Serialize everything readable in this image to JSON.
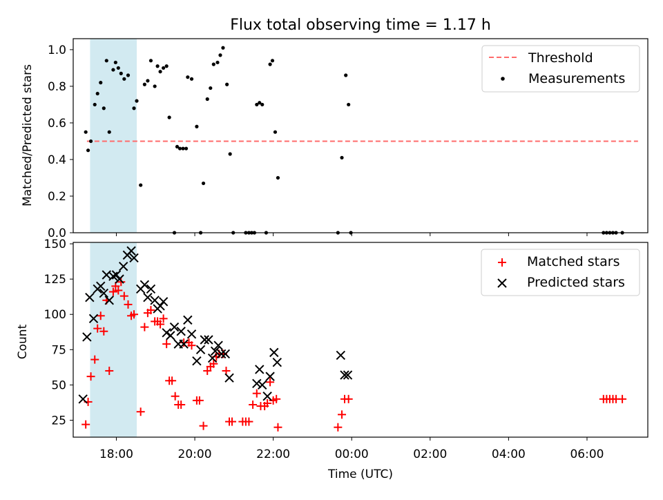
{
  "chart_data": [
    {
      "type": "scatter",
      "title": "Flux total observing time = 1.17 h",
      "ylabel": "Matched/Predicted stars",
      "xlabel": "",
      "x_unit": "hours since 00:00 UTC of first night (values > 24 are next day)",
      "xlim": [
        16.9,
        31.55
      ],
      "ylim": [
        0,
        1.06
      ],
      "yticks": [
        "0.0",
        "0.2",
        "0.4",
        "0.6",
        "0.8",
        "1.0"
      ],
      "xticks": [
        "18:00",
        "20:00",
        "22:00",
        "00:00",
        "02:00",
        "04:00",
        "06:00"
      ],
      "highlight_span": [
        17.33,
        18.52
      ],
      "highlight_color": "#add8e6",
      "legend_position": "upper right",
      "series": [
        {
          "name": "Threshold",
          "kind": "line",
          "style": "dashed",
          "color": "#ff6b6b",
          "x": [
            17.25,
            31.3
          ],
          "y": [
            0.5,
            0.5
          ]
        },
        {
          "name": "Measurements",
          "kind": "scatter",
          "color": "#000000",
          "points": [
            [
              17.22,
              0.55
            ],
            [
              17.28,
              0.45
            ],
            [
              17.35,
              0.5
            ],
            [
              17.45,
              0.7
            ],
            [
              17.52,
              0.76
            ],
            [
              17.6,
              0.82
            ],
            [
              17.68,
              0.68
            ],
            [
              17.75,
              0.94
            ],
            [
              17.82,
              0.55
            ],
            [
              17.92,
              0.89
            ],
            [
              17.98,
              0.93
            ],
            [
              18.05,
              0.9
            ],
            [
              18.12,
              0.87
            ],
            [
              18.2,
              0.84
            ],
            [
              18.3,
              0.86
            ],
            [
              18.45,
              0.68
            ],
            [
              18.52,
              0.72
            ],
            [
              18.62,
              0.26
            ],
            [
              18.72,
              0.81
            ],
            [
              18.8,
              0.83
            ],
            [
              18.88,
              0.94
            ],
            [
              18.98,
              0.8
            ],
            [
              19.05,
              0.91
            ],
            [
              19.12,
              0.88
            ],
            [
              19.2,
              0.9
            ],
            [
              19.28,
              0.91
            ],
            [
              19.35,
              0.63
            ],
            [
              19.48,
              0.0
            ],
            [
              19.55,
              0.47
            ],
            [
              19.62,
              0.46
            ],
            [
              19.7,
              0.46
            ],
            [
              19.78,
              0.46
            ],
            [
              19.82,
              0.85
            ],
            [
              19.92,
              0.84
            ],
            [
              20.05,
              0.58
            ],
            [
              20.15,
              0.0
            ],
            [
              20.22,
              0.27
            ],
            [
              20.32,
              0.73
            ],
            [
              20.4,
              0.79
            ],
            [
              20.48,
              0.92
            ],
            [
              20.58,
              0.93
            ],
            [
              20.65,
              0.97
            ],
            [
              20.72,
              1.01
            ],
            [
              20.82,
              0.81
            ],
            [
              20.9,
              0.43
            ],
            [
              20.98,
              0.0
            ],
            [
              21.3,
              0.0
            ],
            [
              21.38,
              0.0
            ],
            [
              21.45,
              0.0
            ],
            [
              21.52,
              0.0
            ],
            [
              21.58,
              0.7
            ],
            [
              21.65,
              0.71
            ],
            [
              21.72,
              0.7
            ],
            [
              21.82,
              0.0
            ],
            [
              21.92,
              0.92
            ],
            [
              21.98,
              0.94
            ],
            [
              22.05,
              0.55
            ],
            [
              22.12,
              0.3
            ],
            [
              23.65,
              0.0
            ],
            [
              23.75,
              0.41
            ],
            [
              23.85,
              0.86
            ],
            [
              23.92,
              0.7
            ],
            [
              23.98,
              0.0
            ],
            [
              30.42,
              0.0
            ],
            [
              30.5,
              0.0
            ],
            [
              30.58,
              0.0
            ],
            [
              30.66,
              0.0
            ],
            [
              30.74,
              0.0
            ],
            [
              30.9,
              0.0
            ]
          ]
        }
      ]
    },
    {
      "type": "scatter",
      "title": "",
      "ylabel": "Count",
      "xlabel": "Time (UTC)",
      "x_unit": "hours since 00:00 UTC of first night (values > 24 are next day)",
      "xlim": [
        16.9,
        31.55
      ],
      "ylim": [
        13,
        151
      ],
      "yticks": [
        "25",
        "50",
        "75",
        "100",
        "125",
        "150"
      ],
      "xticks": [
        "18:00",
        "20:00",
        "22:00",
        "00:00",
        "02:00",
        "04:00",
        "06:00"
      ],
      "highlight_span": [
        17.33,
        18.52
      ],
      "highlight_color": "#add8e6",
      "legend_position": "upper right",
      "series": [
        {
          "name": "Matched stars",
          "kind": "scatter",
          "marker": "+",
          "color": "#ff0000",
          "points": [
            [
              17.22,
              22
            ],
            [
              17.28,
              38
            ],
            [
              17.35,
              56
            ],
            [
              17.45,
              68
            ],
            [
              17.52,
              90
            ],
            [
              17.6,
              99
            ],
            [
              17.68,
              88
            ],
            [
              17.75,
              110
            ],
            [
              17.82,
              60
            ],
            [
              17.92,
              116
            ],
            [
              17.98,
              120
            ],
            [
              18.05,
              117
            ],
            [
              18.12,
              123
            ],
            [
              18.2,
              113
            ],
            [
              18.3,
              107
            ],
            [
              18.38,
              99
            ],
            [
              18.45,
              100
            ],
            [
              18.62,
              31
            ],
            [
              18.72,
              91
            ],
            [
              18.8,
              101
            ],
            [
              18.88,
              103
            ],
            [
              18.98,
              95
            ],
            [
              19.05,
              95
            ],
            [
              19.12,
              93
            ],
            [
              19.2,
              97
            ],
            [
              19.28,
              79
            ],
            [
              19.35,
              53
            ],
            [
              19.42,
              53
            ],
            [
              19.5,
              42
            ],
            [
              19.58,
              36
            ],
            [
              19.65,
              36
            ],
            [
              19.72,
              80
            ],
            [
              19.85,
              80
            ],
            [
              19.92,
              78
            ],
            [
              20.05,
              39
            ],
            [
              20.12,
              39
            ],
            [
              20.22,
              21
            ],
            [
              20.32,
              60
            ],
            [
              20.4,
              63
            ],
            [
              20.48,
              65
            ],
            [
              20.55,
              70
            ],
            [
              20.62,
              72
            ],
            [
              20.72,
              72
            ],
            [
              20.8,
              60
            ],
            [
              20.88,
              24
            ],
            [
              20.95,
              24
            ],
            [
              21.22,
              24
            ],
            [
              21.3,
              24
            ],
            [
              21.38,
              24
            ],
            [
              21.48,
              36
            ],
            [
              21.58,
              44
            ],
            [
              21.68,
              35
            ],
            [
              21.78,
              35
            ],
            [
              21.85,
              37
            ],
            [
              21.92,
              52
            ],
            [
              22.0,
              39
            ],
            [
              22.08,
              40
            ],
            [
              22.12,
              20
            ],
            [
              23.65,
              20
            ],
            [
              23.75,
              29
            ],
            [
              23.82,
              40
            ],
            [
              23.92,
              40
            ],
            [
              30.42,
              40
            ],
            [
              30.5,
              40
            ],
            [
              30.58,
              40
            ],
            [
              30.66,
              40
            ],
            [
              30.74,
              40
            ],
            [
              30.9,
              40
            ]
          ]
        },
        {
          "name": "Predicted stars",
          "kind": "scatter",
          "marker": "x",
          "color": "#000000",
          "points": [
            [
              17.15,
              40
            ],
            [
              17.25,
              84
            ],
            [
              17.32,
              112
            ],
            [
              17.42,
              97
            ],
            [
              17.52,
              118
            ],
            [
              17.6,
              120
            ],
            [
              17.68,
              115
            ],
            [
              17.75,
              128
            ],
            [
              17.82,
              110
            ],
            [
              17.92,
              127
            ],
            [
              18.0,
              128
            ],
            [
              18.08,
              125
            ],
            [
              18.18,
              134
            ],
            [
              18.28,
              142
            ],
            [
              18.38,
              145
            ],
            [
              18.45,
              140
            ],
            [
              18.62,
              118
            ],
            [
              18.72,
              121
            ],
            [
              18.8,
              112
            ],
            [
              18.88,
              118
            ],
            [
              18.98,
              110
            ],
            [
              19.05,
              104
            ],
            [
              19.12,
              106
            ],
            [
              19.2,
              109
            ],
            [
              19.28,
              87
            ],
            [
              19.38,
              85
            ],
            [
              19.48,
              91
            ],
            [
              19.58,
              79
            ],
            [
              19.65,
              88
            ],
            [
              19.72,
              79
            ],
            [
              19.82,
              96
            ],
            [
              19.92,
              86
            ],
            [
              20.05,
              67
            ],
            [
              20.15,
              75
            ],
            [
              20.25,
              82
            ],
            [
              20.35,
              82
            ],
            [
              20.45,
              69
            ],
            [
              20.52,
              74
            ],
            [
              20.6,
              78
            ],
            [
              20.68,
              72
            ],
            [
              20.78,
              72
            ],
            [
              20.88,
              55
            ],
            [
              21.58,
              51
            ],
            [
              21.65,
              61
            ],
            [
              21.72,
              50
            ],
            [
              21.85,
              42
            ],
            [
              21.92,
              56
            ],
            [
              22.02,
              73
            ],
            [
              22.1,
              66
            ],
            [
              23.72,
              71
            ],
            [
              23.82,
              57
            ],
            [
              23.9,
              57
            ]
          ]
        }
      ]
    }
  ]
}
